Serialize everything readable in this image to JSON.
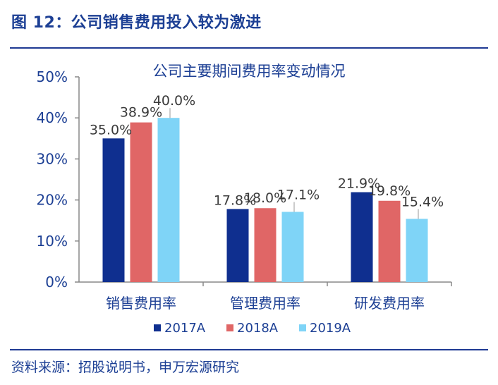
{
  "figure_title": "图 12：公司销售费用投入较为激进",
  "source_note": "资料来源：招股说明书，申万宏源研究",
  "chart_data": {
    "type": "bar",
    "title": "公司主要期间费用率变动情况",
    "categories": [
      "销售费用率",
      "管理费用率",
      "研发费用率"
    ],
    "series": [
      {
        "name": "2017A",
        "color": "#0f2f8f",
        "values": [
          35.0,
          17.8,
          21.9
        ],
        "labels": [
          "35.0%",
          "17.8%",
          "21.9%"
        ]
      },
      {
        "name": "2018A",
        "color": "#e06666",
        "values": [
          38.9,
          18.0,
          19.8
        ],
        "labels": [
          "38.9%",
          "18.0%",
          "19.8%"
        ]
      },
      {
        "name": "2019A",
        "color": "#7fd4f7",
        "values": [
          40.0,
          17.1,
          15.4
        ],
        "labels": [
          "40.0%",
          "17.1%",
          "15.4%"
        ]
      }
    ],
    "ylim": [
      0,
      50
    ],
    "yticks": [
      "0%",
      "10%",
      "20%",
      "30%",
      "40%",
      "50%"
    ],
    "legend_position": "bottom",
    "grid": false
  }
}
